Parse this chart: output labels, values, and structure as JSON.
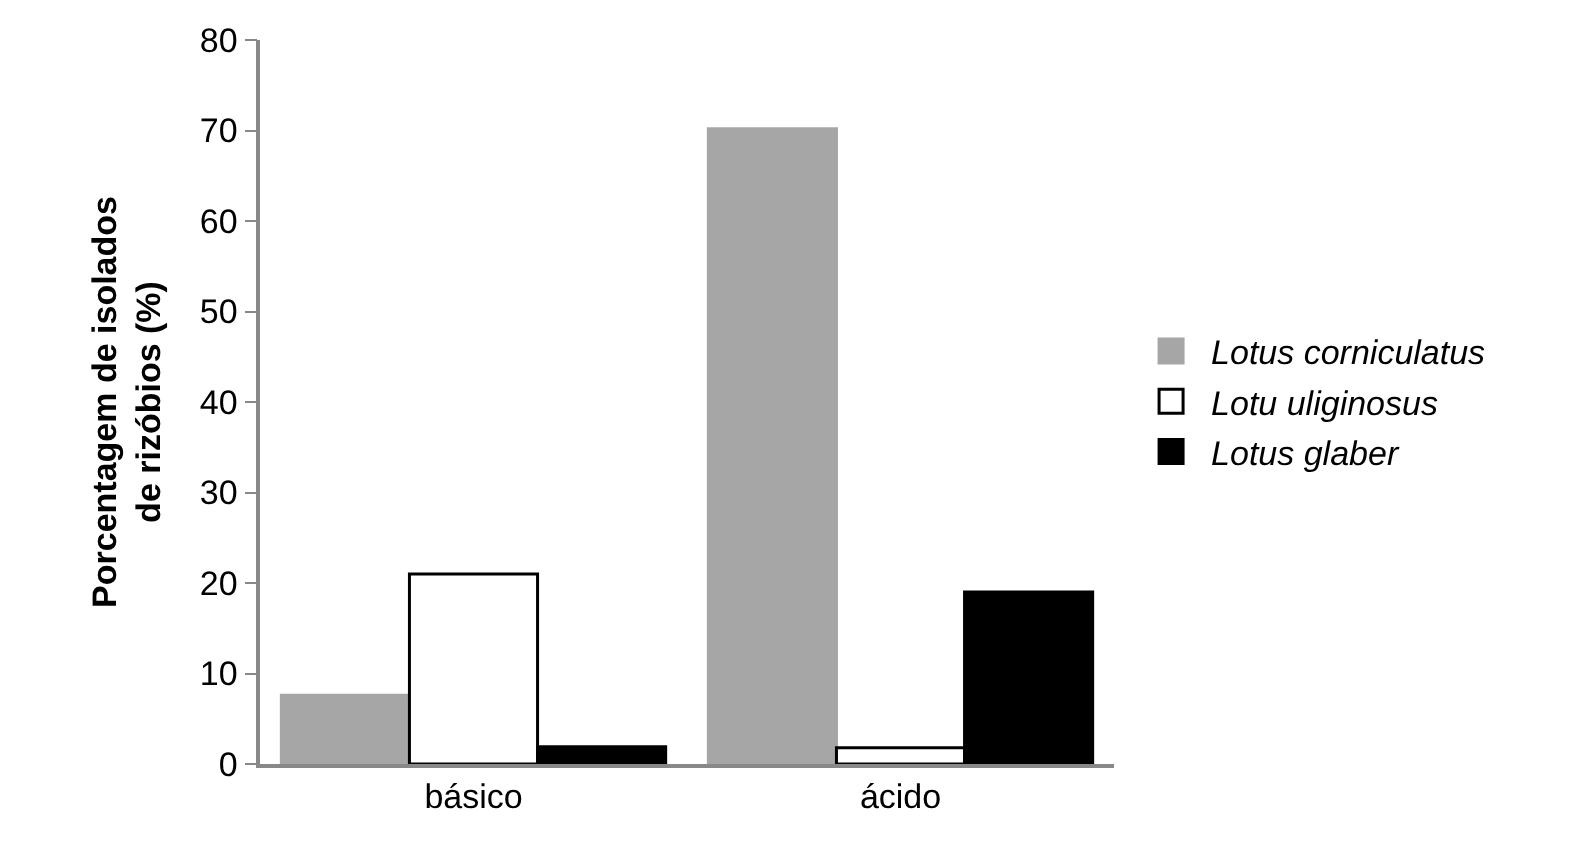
{
  "chart_data": {
    "type": "bar",
    "ylabel": "Porcentagem de isolados\nde rizóbios (%)",
    "categories": [
      "básico",
      "ácido"
    ],
    "series": [
      {
        "name": "Lotus corniculatus",
        "color": "#a6a6a6",
        "values": [
          7.6,
          70.2
        ]
      },
      {
        "name": "Lotu uliginosus",
        "color": "#ffffff",
        "values": [
          21.0,
          1.8
        ]
      },
      {
        "name": "Lotus glaber",
        "color": "#000000",
        "values": [
          1.9,
          19.0
        ]
      }
    ],
    "ylim": [
      0,
      80
    ],
    "yticks": [
      0,
      10,
      20,
      30,
      40,
      50,
      60,
      70,
      80
    ],
    "legend": "right"
  }
}
